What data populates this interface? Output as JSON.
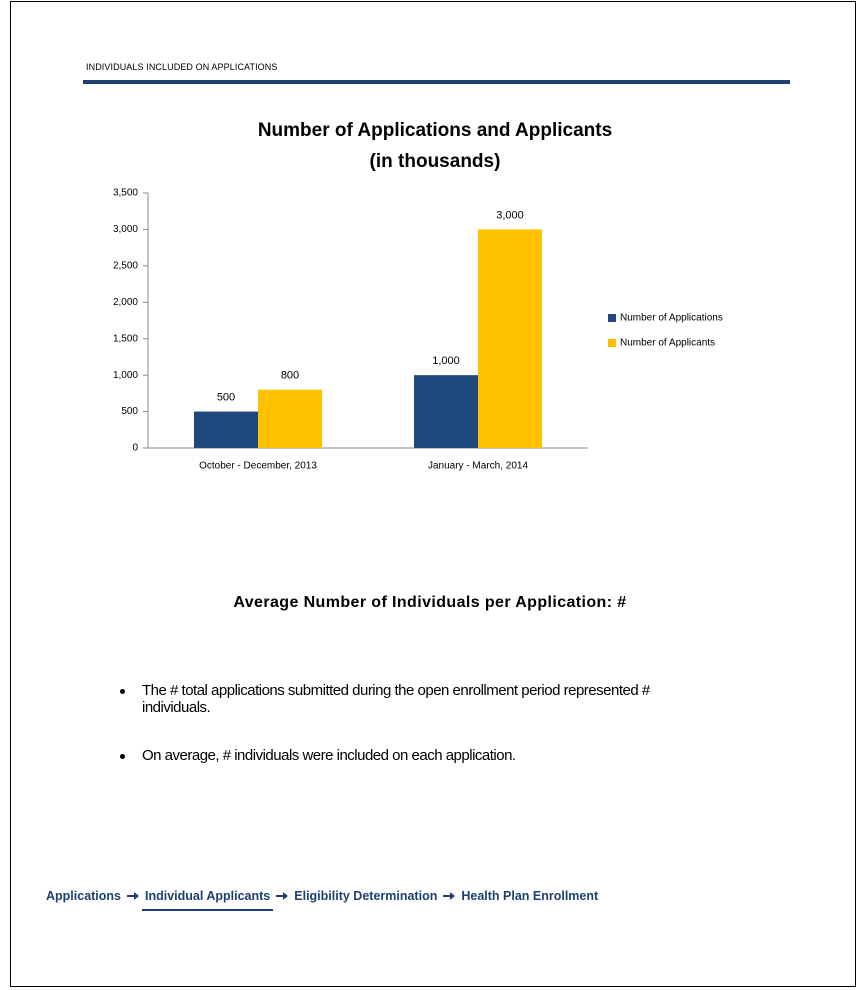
{
  "header": {
    "title": "INDIVIDUALS INCLUDED ON APPLICATIONS"
  },
  "chart_data": {
    "type": "bar",
    "title": "Number of Applications and Applicants",
    "subtitle": "(in thousands)",
    "categories": [
      "October - December, 2013",
      "January - March, 2014"
    ],
    "series": [
      {
        "name": "Number of Applications",
        "color": "#1f497d",
        "values": [
          500,
          1000
        ],
        "value_labels": [
          "500",
          "1,000"
        ]
      },
      {
        "name": "Number of Applicants",
        "color": "#ffc000",
        "values": [
          800,
          3000
        ],
        "value_labels": [
          "800",
          "3,000"
        ]
      }
    ],
    "ylim": [
      0,
      3500
    ],
    "yticks": [
      0,
      500,
      {
        "value": 1000,
        "label": "1,000"
      },
      {
        "value": 1500,
        "label": "1,500"
      },
      {
        "value": 2000,
        "label": "2,000"
      },
      {
        "value": 2500,
        "label": "2,500"
      },
      {
        "value": 3000,
        "label": "3,000"
      },
      {
        "value": 3500,
        "label": "3,500"
      }
    ],
    "grid": false,
    "legend": "right"
  },
  "summary": {
    "heading": "Average Number of Individuals per Application: #",
    "bullets": [
      "The # total applications submitted during the open enrollment period represented # individuals.",
      "On average, # individuals were included on each application."
    ]
  },
  "nav": {
    "items": [
      "Applications",
      "Individual Applicants",
      "Eligibility Determination",
      "Health Plan Enrollment"
    ]
  }
}
